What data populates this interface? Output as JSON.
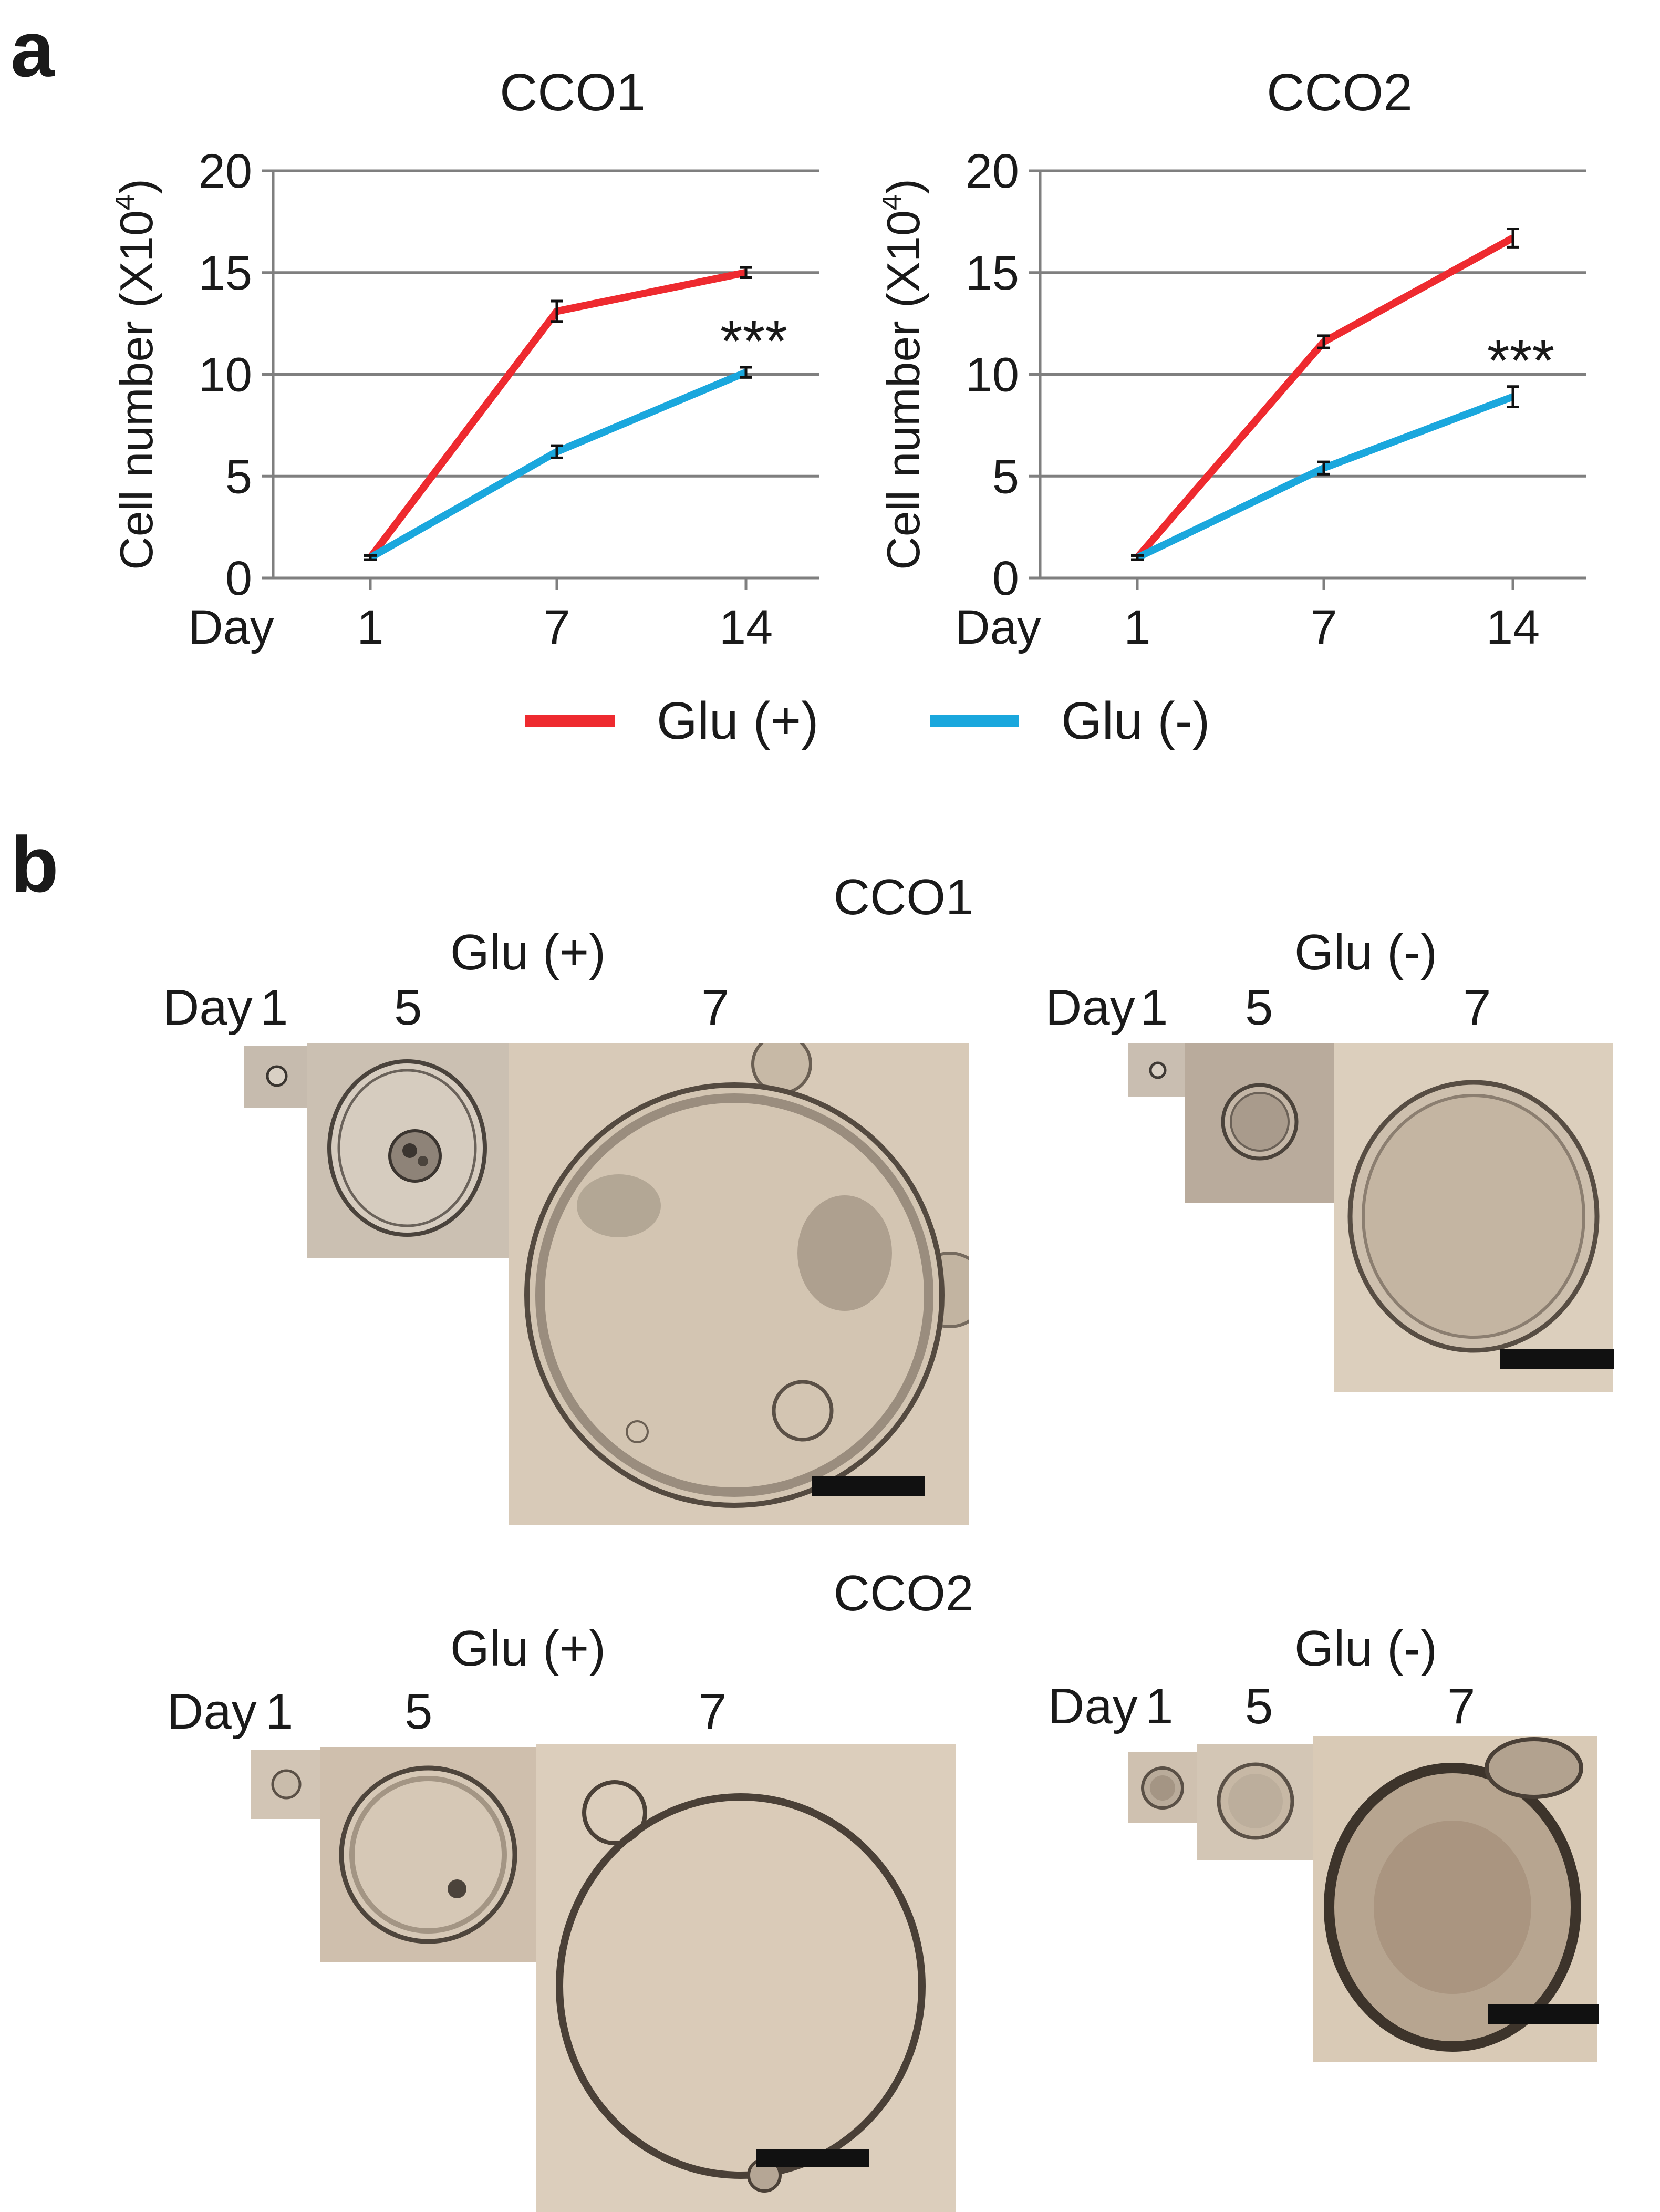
{
  "panel_a": {
    "label": "a",
    "legend": {
      "series1": "Glu (+)",
      "series2": "Glu (-)"
    }
  },
  "panel_b": {
    "label": "b",
    "cco1": {
      "title": "CCO1",
      "left": {
        "title": "Glu (+)",
        "day_label": "Day",
        "days": [
          "1",
          "5",
          "7"
        ]
      },
      "right": {
        "title": "Glu (-)",
        "day_label": "Day",
        "days": [
          "1",
          "5",
          "7"
        ]
      }
    },
    "cco2": {
      "title": "CCO2",
      "left": {
        "title": "Glu (+)",
        "day_label": "Day",
        "days": [
          "1",
          "5",
          "7"
        ]
      },
      "right": {
        "title": "Glu (-)",
        "day_label": "Day",
        "days": [
          "1",
          "5",
          "7"
        ]
      }
    }
  },
  "colors": {
    "glu_plus": "#ee2a2f",
    "glu_minus": "#1aa7dd",
    "grid": "#7f7f7f",
    "micro_bg": "#d2c4b2"
  },
  "chart_data": [
    {
      "type": "line",
      "title": "CCO1",
      "xlabel": "Day",
      "ylabel": "Cell number (X10",
      "ylabel_sup": "4",
      "ylabel_close": ")",
      "categories": [
        "1",
        "7",
        "14"
      ],
      "yticks": [
        "0",
        "5",
        "10",
        "15",
        "20"
      ],
      "ylim": [
        0,
        20
      ],
      "grid": true,
      "significance": "***",
      "series": [
        {
          "name": "Glu (+)",
          "values": [
            1,
            13.1,
            15.0
          ],
          "errors": [
            0.1,
            0.5,
            0.25
          ]
        },
        {
          "name": "Glu (-)",
          "values": [
            1,
            6.2,
            10.1
          ],
          "errors": [
            0.1,
            0.3,
            0.25
          ]
        }
      ]
    },
    {
      "type": "line",
      "title": "CCO2",
      "xlabel": "Day",
      "ylabel": "Cell number (X10",
      "ylabel_sup": "4",
      "ylabel_close": ")",
      "categories": [
        "1",
        "7",
        "14"
      ],
      "yticks": [
        "0",
        "5",
        "10",
        "15",
        "20"
      ],
      "ylim": [
        0,
        20
      ],
      "grid": true,
      "significance": "***",
      "series": [
        {
          "name": "Glu (+)",
          "values": [
            1,
            11.6,
            16.7
          ],
          "errors": [
            0.1,
            0.3,
            0.45
          ]
        },
        {
          "name": "Glu (-)",
          "values": [
            1,
            5.4,
            8.9
          ],
          "errors": [
            0.1,
            0.3,
            0.5
          ]
        }
      ]
    }
  ]
}
